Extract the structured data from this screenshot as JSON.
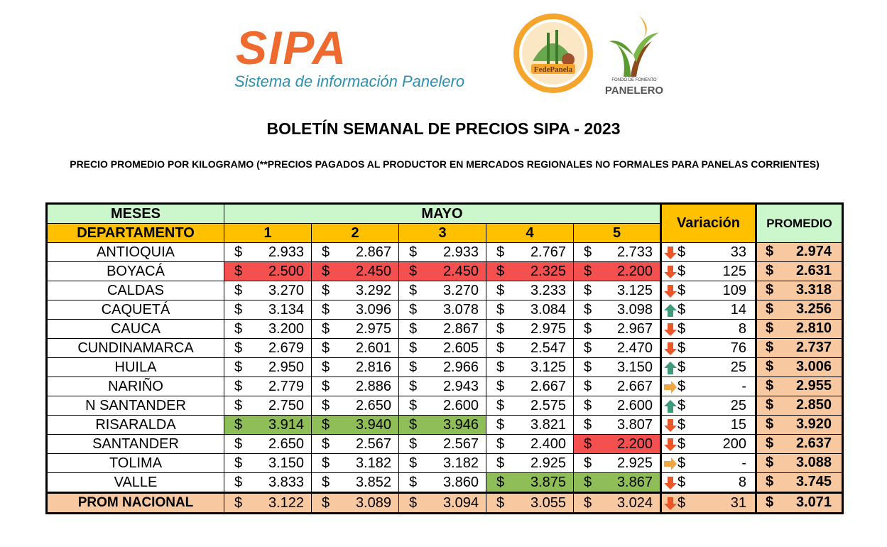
{
  "header": {
    "sipa_logo_text": "SIPA",
    "sipa_logo_subtitle": "Sistema de información Panelero",
    "fedepanela_logo_text": "FedePanela",
    "fondo_logo_small": "FONDO DE FOMENTO",
    "fondo_logo_big": "PANELERO",
    "title": "BOLETÍN SEMANAL DE PRECIOS  SIPA - 2023",
    "subtitle": "PRECIO PROMEDIO  POR KILOGRAMO (**PRECIOS PAGADOS AL PRODUCTOR EN MERCADOS REGIONALES  NO FORMALES PARA PANELAS CORRIENTES)"
  },
  "table": {
    "meses_label": "MESES",
    "departamento_label": "DEPARTAMENTO",
    "month": "MAYO",
    "variacion_label": "Variación",
    "promedio_label": "PROMEDIO",
    "weeks": [
      "1",
      "2",
      "3",
      "4",
      "5"
    ],
    "currency": "$",
    "colors": {
      "green_header": "#ccf6cc",
      "orange_header": "#ffc000",
      "high": "#8fbd58",
      "low": "#f45050",
      "promedio": "#f8c9a0",
      "arrow_down": "#e8562a",
      "arrow_up": "#3f9a7a",
      "arrow_flat": "#f0a640"
    },
    "rows": [
      {
        "dept": "ANTIOQUIA",
        "prices": [
          "2.933",
          "2.867",
          "2.933",
          "2.767",
          "2.733"
        ],
        "highlight": [
          "",
          "",
          "",
          "",
          ""
        ],
        "trend": "down",
        "variation": "33",
        "promedio": "2.974"
      },
      {
        "dept": "BOYACÁ",
        "prices": [
          "2.500",
          "2.450",
          "2.450",
          "2.325",
          "2.200"
        ],
        "highlight": [
          "red",
          "red",
          "red",
          "red",
          "red"
        ],
        "trend": "down",
        "variation": "125",
        "promedio": "2.631"
      },
      {
        "dept": "CALDAS",
        "prices": [
          "3.270",
          "3.292",
          "3.270",
          "3.233",
          "3.125"
        ],
        "highlight": [
          "",
          "",
          "",
          "",
          ""
        ],
        "trend": "down",
        "variation": "109",
        "promedio": "3.318"
      },
      {
        "dept": "CAQUETÁ",
        "prices": [
          "3.134",
          "3.096",
          "3.078",
          "3.084",
          "3.098"
        ],
        "highlight": [
          "",
          "",
          "",
          "",
          ""
        ],
        "trend": "up",
        "variation": "14",
        "promedio": "3.256"
      },
      {
        "dept": "CAUCA",
        "prices": [
          "3.200",
          "2.975",
          "2.867",
          "2.975",
          "2.967"
        ],
        "highlight": [
          "",
          "",
          "",
          "",
          ""
        ],
        "trend": "down",
        "variation": "8",
        "promedio": "2.810"
      },
      {
        "dept": "CUNDINAMARCA",
        "prices": [
          "2.679",
          "2.601",
          "2.605",
          "2.547",
          "2.470"
        ],
        "highlight": [
          "",
          "",
          "",
          "",
          ""
        ],
        "trend": "down",
        "variation": "76",
        "promedio": "2.737"
      },
      {
        "dept": "HUILA",
        "prices": [
          "2.950",
          "2.816",
          "2.966",
          "3.125",
          "3.150"
        ],
        "highlight": [
          "",
          "",
          "",
          "",
          ""
        ],
        "trend": "up",
        "variation": "25",
        "promedio": "3.006"
      },
      {
        "dept": "NARIÑO",
        "prices": [
          "2.779",
          "2.886",
          "2.943",
          "2.667",
          "2.667"
        ],
        "highlight": [
          "",
          "",
          "",
          "",
          ""
        ],
        "trend": "flat",
        "variation": "-",
        "promedio": "2.955"
      },
      {
        "dept": "N SANTANDER",
        "prices": [
          "2.750",
          "2.650",
          "2.600",
          "2.575",
          "2.600"
        ],
        "highlight": [
          "",
          "",
          "",
          "",
          ""
        ],
        "trend": "up",
        "variation": "25",
        "promedio": "2.850"
      },
      {
        "dept": "RISARALDA",
        "prices": [
          "3.914",
          "3.940",
          "3.946",
          "3.821",
          "3.807"
        ],
        "highlight": [
          "green",
          "green",
          "green",
          "",
          ""
        ],
        "trend": "down",
        "variation": "15",
        "promedio": "3.920"
      },
      {
        "dept": "SANTANDER",
        "prices": [
          "2.650",
          "2.567",
          "2.567",
          "2.400",
          "2.200"
        ],
        "highlight": [
          "",
          "",
          "",
          "",
          "red"
        ],
        "trend": "down",
        "variation": "200",
        "promedio": "2.637"
      },
      {
        "dept": "TOLIMA",
        "prices": [
          "3.150",
          "3.182",
          "3.182",
          "2.925",
          "2.925"
        ],
        "highlight": [
          "",
          "",
          "",
          "",
          ""
        ],
        "trend": "flat",
        "variation": "-",
        "promedio": "3.088"
      },
      {
        "dept": "VALLE",
        "prices": [
          "3.833",
          "3.852",
          "3.860",
          "3.875",
          "3.867"
        ],
        "highlight": [
          "",
          "",
          "",
          "green",
          "green"
        ],
        "trend": "down",
        "variation": "8",
        "promedio": "3.745"
      }
    ],
    "national": {
      "dept": "PROM NACIONAL",
      "prices": [
        "3.122",
        "3.089",
        "3.094",
        "3.055",
        "3.024"
      ],
      "trend": "down",
      "variation": "31",
      "promedio": "3.071"
    }
  }
}
